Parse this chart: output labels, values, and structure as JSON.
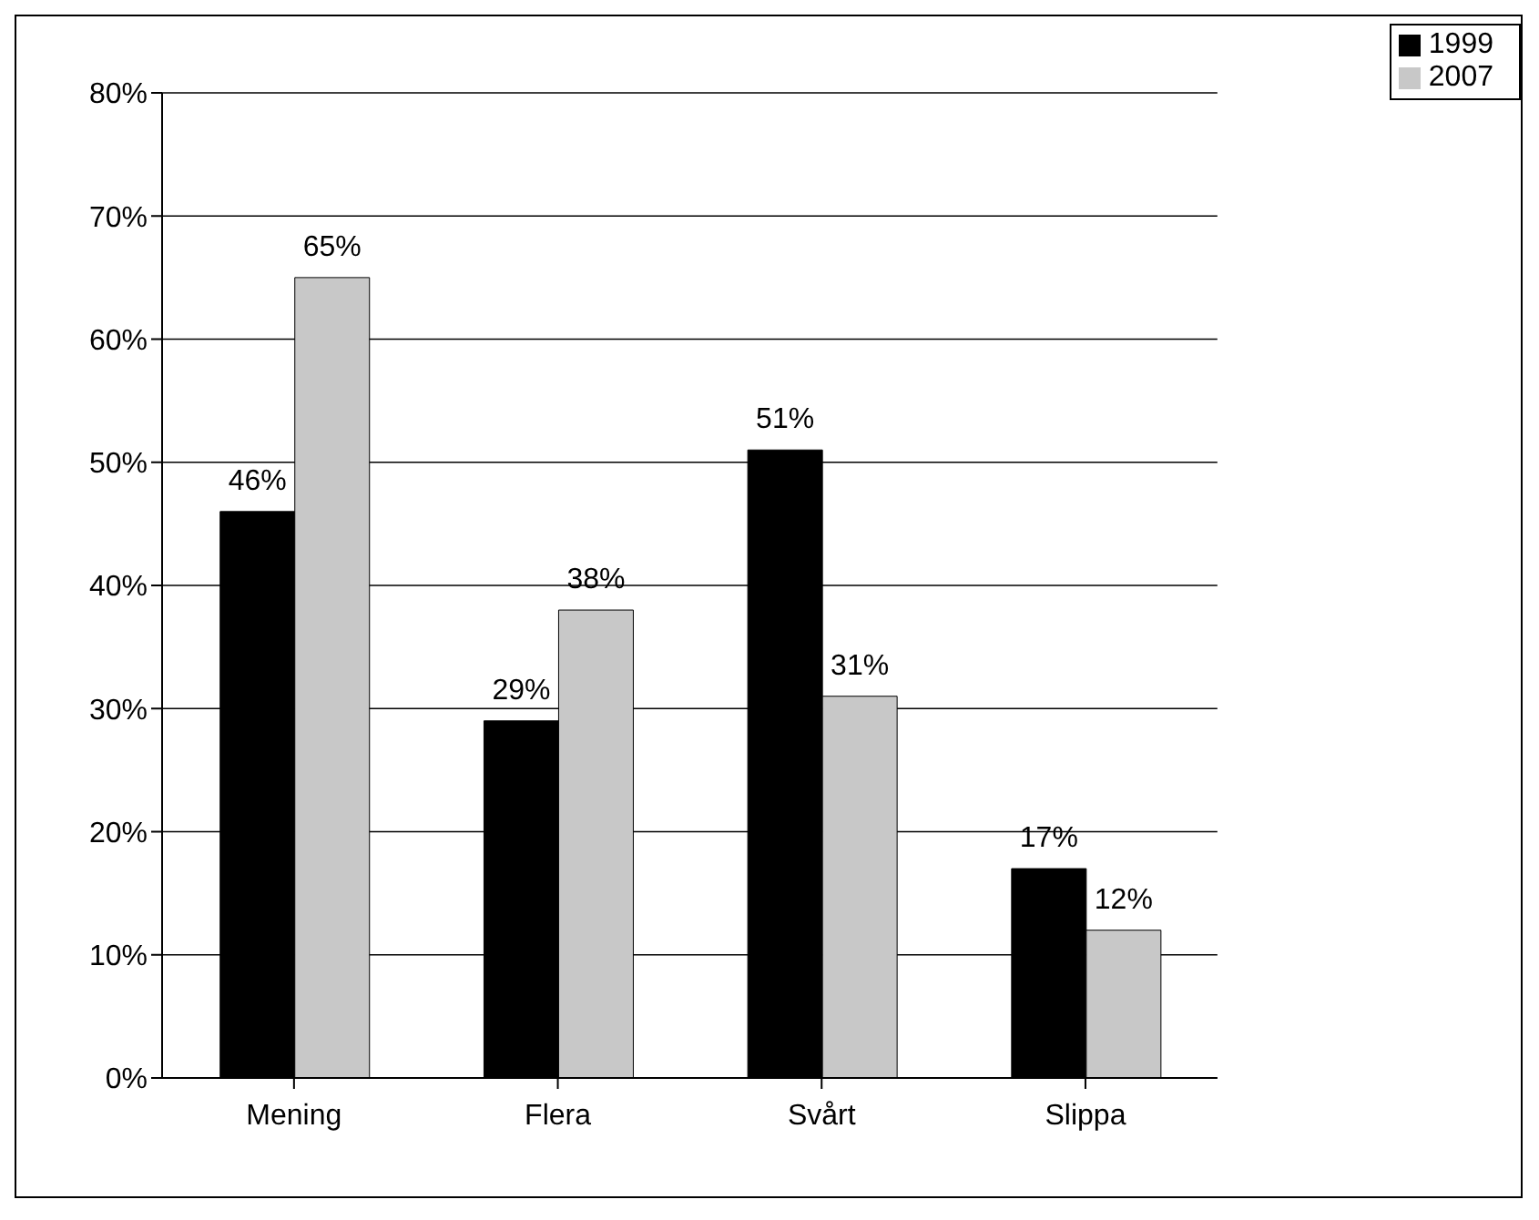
{
  "chart_data": {
    "type": "bar",
    "categories": [
      "Mening",
      "Flera",
      "Svårt",
      "Slippa"
    ],
    "series": [
      {
        "name": "1999",
        "color": "#000000",
        "values": [
          46,
          29,
          51,
          17
        ],
        "value_labels": [
          "46%",
          "29%",
          "51%",
          "17%"
        ]
      },
      {
        "name": "2007",
        "color": "#c8c8c8",
        "values": [
          65,
          38,
          31,
          12
        ],
        "value_labels": [
          "65%",
          "38%",
          "31%",
          "12%"
        ]
      }
    ],
    "ylim": [
      0,
      80
    ],
    "yticks": [
      {
        "value": 0,
        "label": "0%"
      },
      {
        "value": 10,
        "label": "10%"
      },
      {
        "value": 20,
        "label": "20%"
      },
      {
        "value": 30,
        "label": "30%"
      },
      {
        "value": 40,
        "label": "40%"
      },
      {
        "value": 50,
        "label": "50%"
      },
      {
        "value": 60,
        "label": "60%"
      },
      {
        "value": 70,
        "label": "70%"
      },
      {
        "value": 80,
        "label": "80%"
      }
    ],
    "grid": "y",
    "legend": "top right"
  }
}
